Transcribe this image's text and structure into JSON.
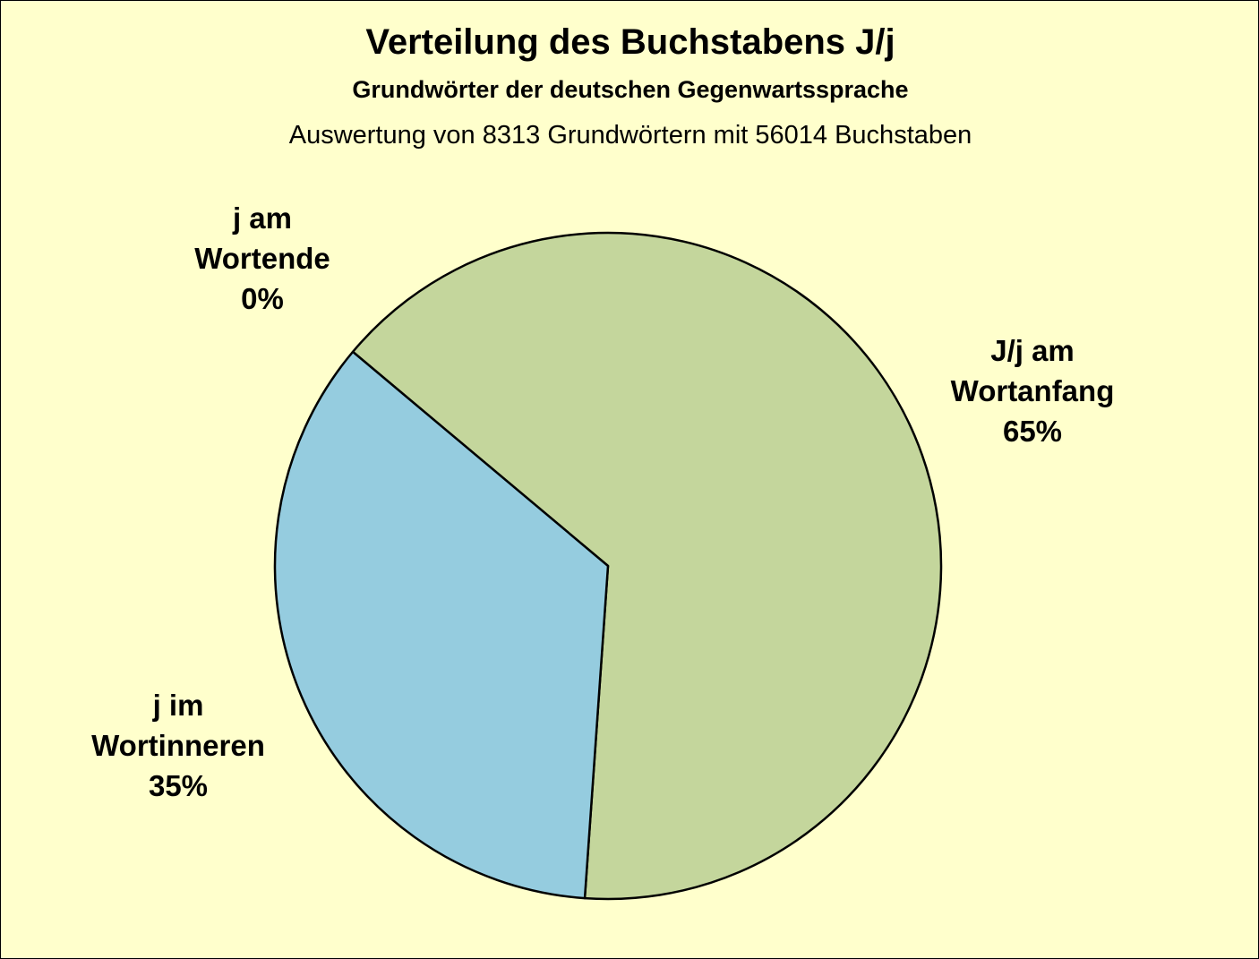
{
  "colors": {
    "background": "#FFFFCC",
    "slice_wortanfang": "#C4D69C",
    "slice_wortinneren": "#95CCDF",
    "slice_wortende": "#D9D9D9"
  },
  "chart_data": {
    "type": "pie",
    "title": "Verteilung des Buchstabens J/j",
    "subtitle": "Grundwörter der deutschen Gegenwartssprache",
    "subtitle2": "Auswertung von 8313 Grundwörtern mit 56014 Buchstaben",
    "legend": "none",
    "slices": [
      {
        "key": "wortanfang",
        "label_lines": [
          "J/j am",
          "Wortanfang",
          "65%"
        ],
        "value": 65,
        "color": "#C4D69C"
      },
      {
        "key": "wortende",
        "label_lines": [
          "j am",
          "Wortende",
          "0%"
        ],
        "value": 0,
        "color": "#D9D9D9"
      },
      {
        "key": "wortinneren",
        "label_lines": [
          "j im",
          "Wortinneren",
          "35%"
        ],
        "value": 35,
        "color": "#95CCDF"
      }
    ]
  }
}
